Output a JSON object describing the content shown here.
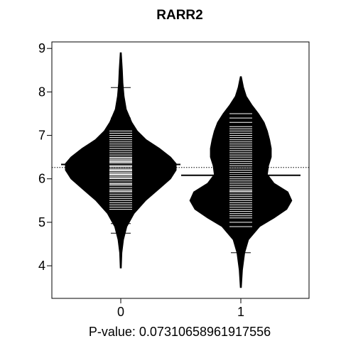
{
  "chart_data": {
    "type": "beanplot",
    "title": "RARR2",
    "xlabel": "P-value: 0.07310658961917556",
    "ylabel": "",
    "categories": [
      "0",
      "1"
    ],
    "yticks": [
      "4",
      "5",
      "6",
      "7",
      "8",
      "9"
    ],
    "ylim": [
      3.25,
      9.15
    ],
    "overall_mean": 6.26,
    "grid": false,
    "legend": "none",
    "series": [
      {
        "category": "0",
        "mean": 6.33,
        "min": 3.95,
        "max": 8.9,
        "density": [
          [
            3.95,
            0.01
          ],
          [
            4.3,
            0.02
          ],
          [
            4.6,
            0.05
          ],
          [
            4.9,
            0.11
          ],
          [
            5.2,
            0.24
          ],
          [
            5.5,
            0.45
          ],
          [
            5.8,
            0.72
          ],
          [
            6.0,
            0.9
          ],
          [
            6.2,
            1.0
          ],
          [
            6.35,
            1.0
          ],
          [
            6.5,
            0.9
          ],
          [
            6.7,
            0.7
          ],
          [
            6.9,
            0.46
          ],
          [
            7.1,
            0.3
          ],
          [
            7.3,
            0.2
          ],
          [
            7.6,
            0.1
          ],
          [
            7.9,
            0.06
          ],
          [
            8.2,
            0.04
          ],
          [
            8.5,
            0.03
          ],
          [
            8.9,
            0.01
          ]
        ],
        "observations": [
          4.75,
          4.97,
          5.05,
          5.15,
          5.2,
          5.3,
          5.35,
          5.4,
          5.45,
          5.5,
          5.55,
          5.6,
          5.65,
          5.7,
          5.72,
          5.75,
          5.8,
          5.85,
          5.88,
          5.9,
          5.95,
          6.0,
          6.02,
          6.05,
          6.08,
          6.1,
          6.12,
          6.15,
          6.18,
          6.2,
          6.22,
          6.25,
          6.28,
          6.3,
          6.32,
          6.35,
          6.38,
          6.4,
          6.42,
          6.45,
          6.48,
          6.5,
          6.55,
          6.6,
          6.65,
          6.7,
          6.75,
          6.8,
          6.85,
          6.9,
          6.95,
          7.0,
          7.05,
          7.1,
          7.15,
          7.2,
          7.25,
          7.3,
          7.4,
          8.1
        ]
      },
      {
        "category": "1",
        "mean": 6.08,
        "min": 3.5,
        "max": 8.35,
        "density": [
          [
            3.5,
            0.01
          ],
          [
            3.9,
            0.03
          ],
          [
            4.3,
            0.07
          ],
          [
            4.6,
            0.14
          ],
          [
            4.9,
            0.34
          ],
          [
            5.1,
            0.6
          ],
          [
            5.3,
            0.83
          ],
          [
            5.5,
            0.92
          ],
          [
            5.7,
            0.85
          ],
          [
            5.9,
            0.6
          ],
          [
            6.1,
            0.48
          ],
          [
            6.3,
            0.5
          ],
          [
            6.5,
            0.55
          ],
          [
            6.7,
            0.55
          ],
          [
            6.9,
            0.52
          ],
          [
            7.1,
            0.48
          ],
          [
            7.3,
            0.42
          ],
          [
            7.5,
            0.32
          ],
          [
            7.7,
            0.2
          ],
          [
            7.9,
            0.1
          ],
          [
            8.1,
            0.05
          ],
          [
            8.35,
            0.01
          ]
        ],
        "observations": [
          4.3,
          4.9,
          5.0,
          5.1,
          5.15,
          5.2,
          5.25,
          5.3,
          5.35,
          5.4,
          5.45,
          5.5,
          5.55,
          5.6,
          5.65,
          5.7,
          5.72,
          5.75,
          5.8,
          5.85,
          5.9,
          5.95,
          6.0,
          6.05,
          6.1,
          6.15,
          6.2,
          6.25,
          6.3,
          6.35,
          6.4,
          6.45,
          6.5,
          6.55,
          6.6,
          6.65,
          6.7,
          6.75,
          6.8,
          6.85,
          6.9,
          6.95,
          7.0,
          7.05,
          7.1,
          7.15,
          7.2,
          7.3,
          7.4,
          7.5
        ]
      }
    ]
  }
}
